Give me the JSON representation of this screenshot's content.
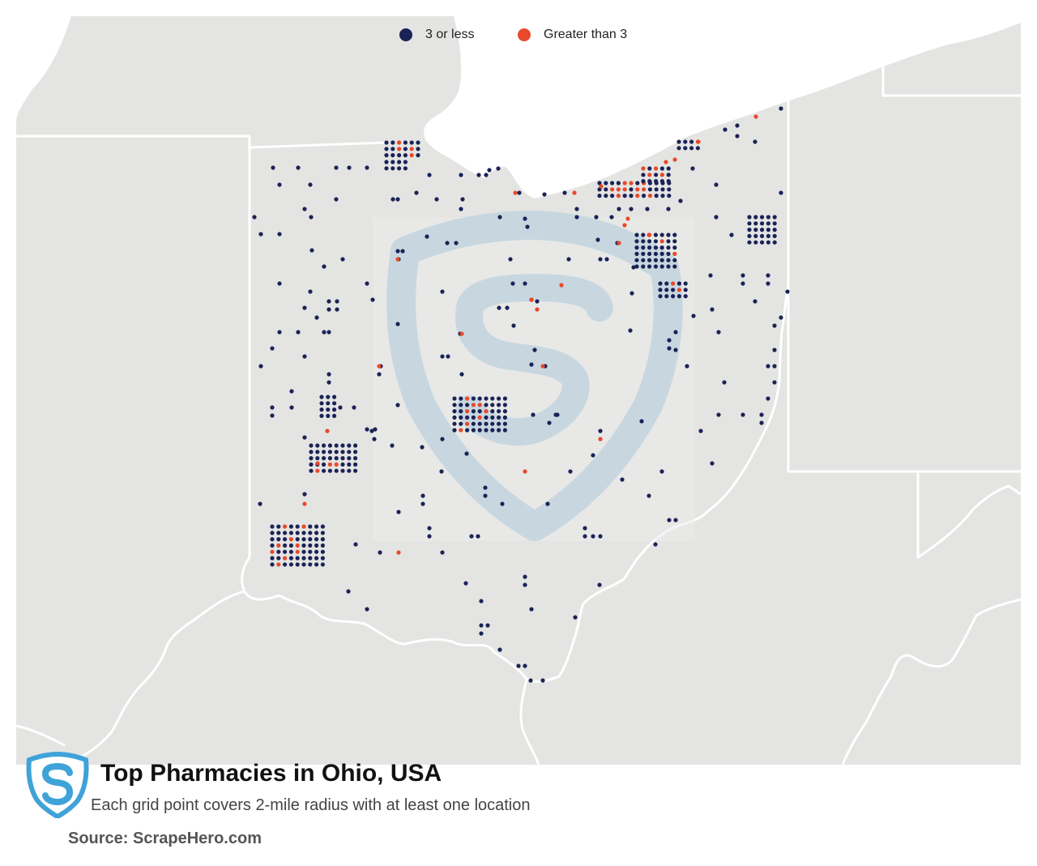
{
  "legend": {
    "low_label": "3 or less",
    "high_label": "Greater than 3",
    "low_color": "#1a2356",
    "high_color": "#e8492a"
  },
  "title": "Top Pharmacies in Ohio, USA",
  "subtitle": "Each grid point covers 2-mile radius with at least one location",
  "source": "Source: ScrapeHero.com",
  "colors": {
    "land": "#e4e4e3",
    "water": "#ffffff",
    "border": "#ffffff",
    "watermark": "#aecbdd",
    "logo_blue": "#3fa3d8"
  },
  "icons": {
    "logo": "scrapehero-shield-icon",
    "watermark": "scrapehero-watermark-icon"
  }
}
